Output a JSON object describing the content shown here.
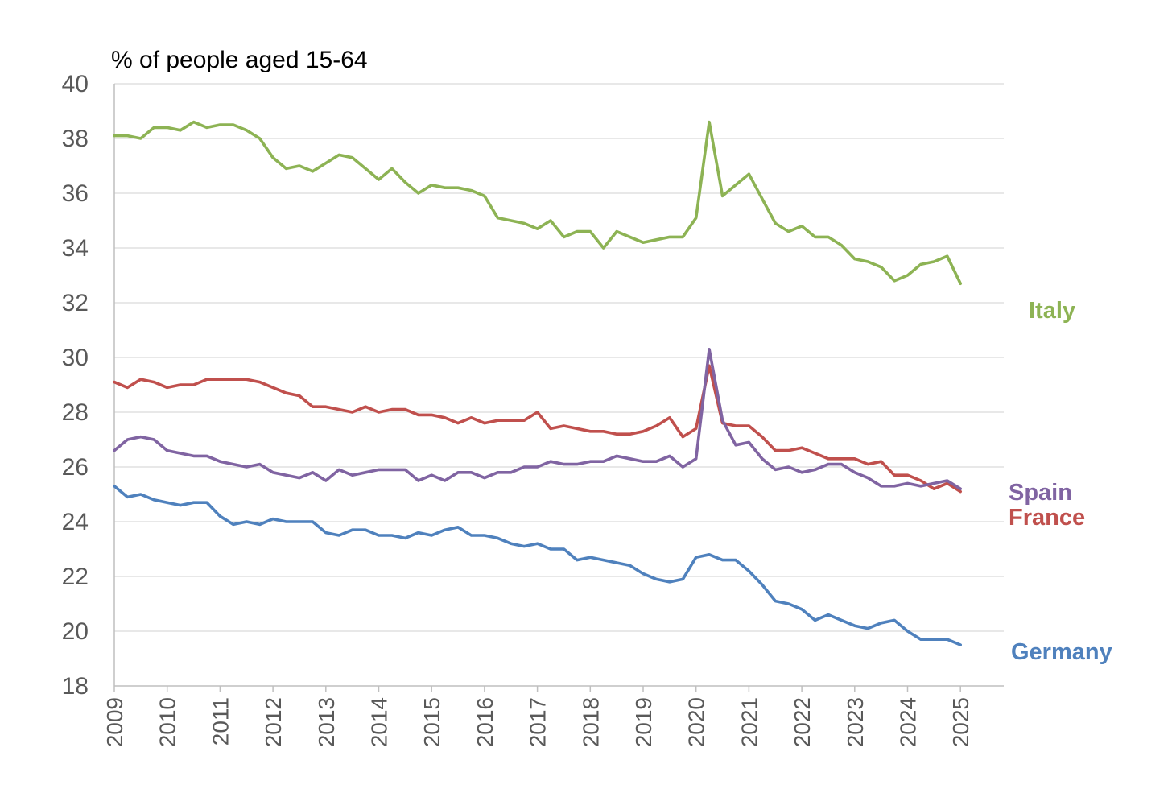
{
  "chart_data": {
    "type": "line",
    "title": "",
    "ylabel": "% of people aged 15-64",
    "xlabel": "",
    "ylim": [
      18,
      40
    ],
    "yticks": [
      18,
      20,
      22,
      24,
      26,
      28,
      30,
      32,
      34,
      36,
      38,
      40
    ],
    "xlim": [
      2009,
      2025.8
    ],
    "xticks": [
      "2009",
      "2010",
      "2011",
      "2012",
      "2013",
      "2014",
      "2015",
      "2016",
      "2017",
      "2018",
      "2019",
      "2020",
      "2021",
      "2022",
      "2023",
      "2024",
      "2025"
    ],
    "grid": true,
    "legend": "labels at right end of lines",
    "x_start": 2009,
    "x_step": 0.25,
    "series": [
      {
        "name": "Italy",
        "color": "#8DB354",
        "values": [
          38.1,
          38.1,
          38.0,
          38.4,
          38.4,
          38.3,
          38.6,
          38.4,
          38.5,
          38.5,
          38.3,
          38.0,
          37.3,
          36.9,
          37.0,
          36.8,
          37.1,
          37.4,
          37.3,
          36.9,
          36.5,
          36.9,
          36.4,
          36.0,
          36.3,
          36.2,
          36.2,
          36.1,
          35.9,
          35.1,
          35.0,
          34.9,
          34.7,
          35.0,
          34.4,
          34.6,
          34.6,
          34.0,
          34.6,
          34.4,
          34.2,
          34.3,
          34.4,
          34.4,
          35.1,
          38.6,
          35.9,
          36.3,
          36.7,
          35.8,
          34.9,
          34.6,
          34.8,
          34.4,
          34.4,
          34.1,
          33.6,
          33.5,
          33.3,
          32.8,
          33.0,
          33.4,
          33.5,
          33.7,
          32.7
        ]
      },
      {
        "name": "France",
        "color": "#C0504D",
        "values": [
          29.1,
          28.9,
          29.2,
          29.1,
          28.9,
          29.0,
          29.0,
          29.2,
          29.2,
          29.2,
          29.2,
          29.1,
          28.9,
          28.7,
          28.6,
          28.2,
          28.2,
          28.1,
          28.0,
          28.2,
          28.0,
          28.1,
          28.1,
          27.9,
          27.9,
          27.8,
          27.6,
          27.8,
          27.6,
          27.7,
          27.7,
          27.7,
          28.0,
          27.4,
          27.5,
          27.4,
          27.3,
          27.3,
          27.2,
          27.2,
          27.3,
          27.5,
          27.8,
          27.1,
          27.4,
          29.7,
          27.6,
          27.5,
          27.5,
          27.1,
          26.6,
          26.6,
          26.7,
          26.5,
          26.3,
          26.3,
          26.3,
          26.1,
          26.2,
          25.7,
          25.7,
          25.5,
          25.2,
          25.4,
          25.1
        ]
      },
      {
        "name": "Spain",
        "color": "#8064A2",
        "values": [
          26.6,
          27.0,
          27.1,
          27.0,
          26.6,
          26.5,
          26.4,
          26.4,
          26.2,
          26.1,
          26.0,
          26.1,
          25.8,
          25.7,
          25.6,
          25.8,
          25.5,
          25.9,
          25.7,
          25.8,
          25.9,
          25.9,
          25.9,
          25.5,
          25.7,
          25.5,
          25.8,
          25.8,
          25.6,
          25.8,
          25.8,
          26.0,
          26.0,
          26.2,
          26.1,
          26.1,
          26.2,
          26.2,
          26.4,
          26.3,
          26.2,
          26.2,
          26.4,
          26.0,
          26.3,
          30.3,
          27.7,
          26.8,
          26.9,
          26.3,
          25.9,
          26.0,
          25.8,
          25.9,
          26.1,
          26.1,
          25.8,
          25.6,
          25.3,
          25.3,
          25.4,
          25.3,
          25.4,
          25.5,
          25.2
        ]
      },
      {
        "name": "Germany",
        "color": "#4F81BD",
        "values": [
          25.3,
          24.9,
          25.0,
          24.8,
          24.7,
          24.6,
          24.7,
          24.7,
          24.2,
          23.9,
          24.0,
          23.9,
          24.1,
          24.0,
          24.0,
          24.0,
          23.6,
          23.5,
          23.7,
          23.7,
          23.5,
          23.5,
          23.4,
          23.6,
          23.5,
          23.7,
          23.8,
          23.5,
          23.5,
          23.4,
          23.2,
          23.1,
          23.2,
          23.0,
          23.0,
          22.6,
          22.7,
          22.6,
          22.5,
          22.4,
          22.1,
          21.9,
          21.8,
          21.9,
          22.7,
          22.8,
          22.6,
          22.6,
          22.2,
          21.7,
          21.1,
          21.0,
          20.8,
          20.4,
          20.6,
          20.4,
          20.2,
          20.1,
          20.3,
          20.4,
          20.0,
          19.7,
          19.7,
          19.7,
          19.5
        ]
      }
    ]
  }
}
